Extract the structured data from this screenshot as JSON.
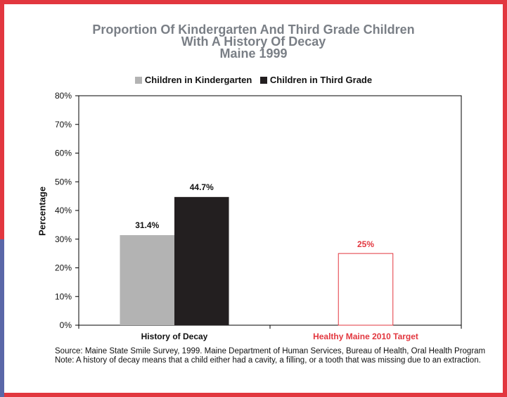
{
  "chart_data": {
    "type": "bar",
    "title_lines": [
      "Proportion Of Kindergarten And Third Grade Children",
      "With A History Of Decay",
      "Maine 1999"
    ],
    "ylabel": "Percentage",
    "xlabel": "",
    "ylim": [
      0,
      80
    ],
    "yticks": [
      "0%",
      "10%",
      "20%",
      "30%",
      "40%",
      "50%",
      "60%",
      "70%",
      "80%"
    ],
    "ytick_values": [
      0,
      10,
      20,
      30,
      40,
      50,
      60,
      70,
      80
    ],
    "grid": false,
    "legend_position": "top",
    "categories": [
      "History of Decay",
      "Healthy Maine 2010 Target"
    ],
    "series": [
      {
        "name": "Children in Kindergarten",
        "color": "#b3b3b3",
        "values": [
          31.4,
          null
        ],
        "labels": [
          "31.4%",
          ""
        ]
      },
      {
        "name": "Children in Third Grade",
        "color": "#231f20",
        "values": [
          44.7,
          null
        ],
        "labels": [
          "44.7%",
          ""
        ]
      }
    ],
    "target": {
      "category": "Healthy Maine 2010 Target",
      "value": 25,
      "label": "25%",
      "color": "#e2373f",
      "style": "outlined"
    }
  },
  "source_note": "Source: Maine State Smile Survey, 1999. Maine Department of Human Services, Bureau of Health, Oral Health Program Note: A history of decay means that a child either had a cavity, a filling, or a tooth that was missing due to an extraction.",
  "colors": {
    "frame": "#e2373f",
    "title": "#7a7f86",
    "accent_strip": "#5a67a8"
  }
}
